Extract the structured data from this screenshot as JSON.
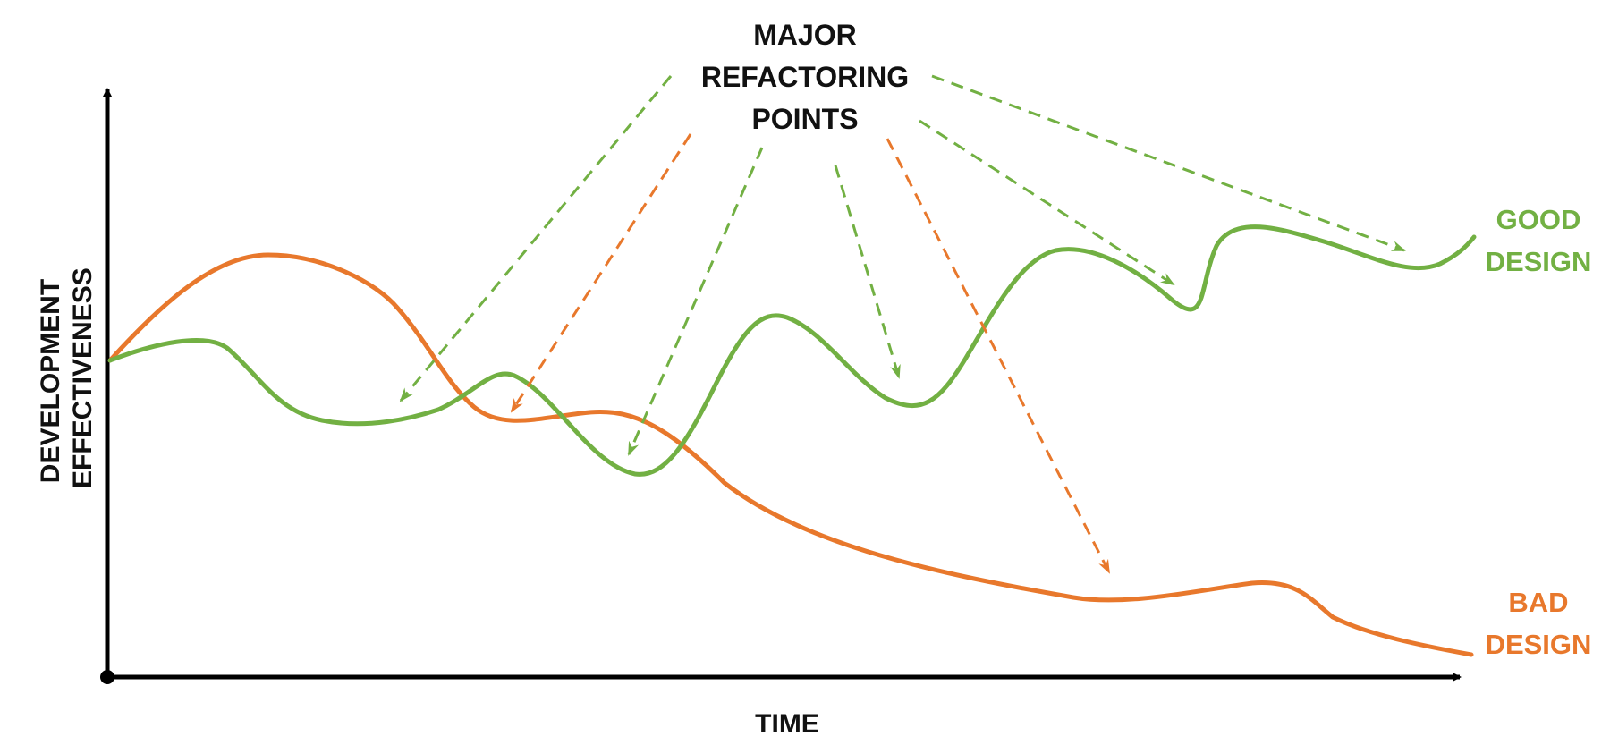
{
  "annotation": {
    "lines": [
      "MAJOR",
      "REFACTORING",
      "POINTS"
    ]
  },
  "series": {
    "good": {
      "lines": [
        "GOOD",
        "DESIGN"
      ],
      "color": "#72b043"
    },
    "bad": {
      "lines": [
        "BAD",
        "DESIGN"
      ],
      "color": "#e8782c"
    }
  },
  "axes": {
    "x_label": "TIME",
    "y_label_lines": [
      "DEVELOPMENT",
      "EFFECTIVENESS"
    ],
    "color": "#000000"
  },
  "refactoring_arrows": [
    {
      "series": "good"
    },
    {
      "series": "bad"
    },
    {
      "series": "good"
    },
    {
      "series": "good"
    },
    {
      "series": "bad"
    },
    {
      "series": "good"
    },
    {
      "series": "good"
    }
  ]
}
